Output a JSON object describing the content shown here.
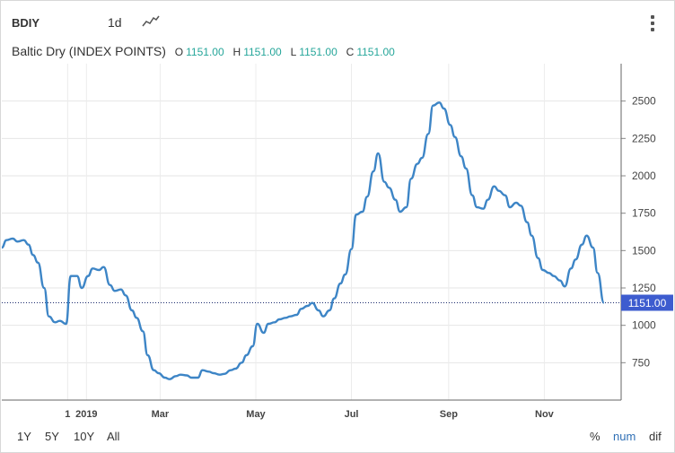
{
  "header": {
    "symbol": "BDIY",
    "interval": "1d",
    "chart_type_icon": "line-chart-icon",
    "menu_icon": "vertical-dots-icon"
  },
  "legend": {
    "name": "Baltic Dry (INDEX POINTS)",
    "open_label": "O",
    "open": "1151.00",
    "high_label": "H",
    "high": "1151.00",
    "low_label": "L",
    "low": "1151.00",
    "close_label": "C",
    "close": "1151.00"
  },
  "range_buttons": [
    "1Y",
    "5Y",
    "10Y",
    "All"
  ],
  "scale_buttons": [
    "%",
    "num",
    "dif"
  ],
  "colors": {
    "line": "#3d85c6",
    "accent": "#26a69a",
    "price_tag": "#3d5ccf",
    "active_scale": "#2f6fb5"
  },
  "chart_data": {
    "type": "line",
    "title": "Baltic Dry (INDEX POINTS)",
    "x_tick_labels": [
      "1",
      "2019",
      "Mar",
      "May",
      "Jul",
      "Sep",
      "Nov"
    ],
    "x_tick_dates": [
      "2019-01-01",
      "2019-01-13",
      "2019-03-01",
      "2019-05-01",
      "2019-07-01",
      "2019-09-01",
      "2019-11-01"
    ],
    "y_ticks": [
      750,
      1000,
      1250,
      1500,
      1750,
      2000,
      2250,
      2500
    ],
    "ylim": [
      500,
      2750
    ],
    "xlim": [
      "2018-11-20",
      "2019-12-20"
    ],
    "last_value": "1151.00",
    "last_value_num": 1151,
    "grid": true,
    "series": [
      {
        "x": [
          "2018-11-20",
          "2018-11-23",
          "2018-11-27",
          "2018-11-30",
          "2018-12-04",
          "2018-12-07",
          "2018-12-10",
          "2018-12-13",
          "2018-12-17",
          "2018-12-20",
          "2018-12-24",
          "2018-12-27",
          "2018-12-31",
          "2019-01-03",
          "2019-01-07",
          "2019-01-10",
          "2019-01-14",
          "2019-01-17",
          "2019-01-21",
          "2019-01-24",
          "2019-01-28",
          "2019-01-31",
          "2019-02-04",
          "2019-02-07",
          "2019-02-11",
          "2019-02-14",
          "2019-02-18",
          "2019-02-21",
          "2019-02-25",
          "2019-02-28",
          "2019-03-04",
          "2019-03-07",
          "2019-03-11",
          "2019-03-14",
          "2019-03-18",
          "2019-03-21",
          "2019-03-25",
          "2019-03-28",
          "2019-04-01",
          "2019-04-04",
          "2019-04-08",
          "2019-04-11",
          "2019-04-15",
          "2019-04-18",
          "2019-04-22",
          "2019-04-25",
          "2019-04-29",
          "2019-05-02",
          "2019-05-06",
          "2019-05-09",
          "2019-05-13",
          "2019-05-16",
          "2019-05-20",
          "2019-05-23",
          "2019-05-27",
          "2019-05-30",
          "2019-06-03",
          "2019-06-06",
          "2019-06-10",
          "2019-06-13",
          "2019-06-17",
          "2019-06-20",
          "2019-06-24",
          "2019-06-27",
          "2019-07-01",
          "2019-07-04",
          "2019-07-08",
          "2019-07-11",
          "2019-07-15",
          "2019-07-18",
          "2019-07-22",
          "2019-07-25",
          "2019-07-29",
          "2019-08-01",
          "2019-08-05",
          "2019-08-08",
          "2019-08-12",
          "2019-08-15",
          "2019-08-19",
          "2019-08-22",
          "2019-08-26",
          "2019-08-29",
          "2019-09-02",
          "2019-09-05",
          "2019-09-09",
          "2019-09-12",
          "2019-09-16",
          "2019-09-19",
          "2019-09-23",
          "2019-09-26",
          "2019-09-30",
          "2019-10-03",
          "2019-10-07",
          "2019-10-10",
          "2019-10-14",
          "2019-10-17",
          "2019-10-21",
          "2019-10-24",
          "2019-10-28",
          "2019-10-31",
          "2019-11-04",
          "2019-11-07",
          "2019-11-11",
          "2019-11-14",
          "2019-11-18",
          "2019-11-21",
          "2019-11-25",
          "2019-11-28",
          "2019-12-02",
          "2019-12-05",
          "2019-12-09"
        ],
        "values": [
          1520,
          1570,
          1580,
          1560,
          1570,
          1540,
          1470,
          1420,
          1250,
          1060,
          1020,
          1030,
          1010,
          1330,
          1330,
          1250,
          1330,
          1380,
          1370,
          1390,
          1270,
          1230,
          1240,
          1200,
          1100,
          1050,
          960,
          800,
          700,
          680,
          650,
          640,
          660,
          670,
          665,
          650,
          650,
          700,
          690,
          680,
          670,
          675,
          700,
          710,
          750,
          800,
          860,
          1010,
          950,
          1010,
          1020,
          1040,
          1050,
          1060,
          1070,
          1110,
          1130,
          1150,
          1100,
          1060,
          1100,
          1180,
          1280,
          1340,
          1510,
          1740,
          1760,
          1860,
          2030,
          2150,
          1960,
          1920,
          1840,
          1760,
          1790,
          1980,
          2080,
          2120,
          2280,
          2470,
          2490,
          2450,
          2340,
          2260,
          2130,
          2050,
          1870,
          1790,
          1780,
          1840,
          1930,
          1900,
          1870,
          1790,
          1820,
          1800,
          1690,
          1600,
          1450,
          1370,
          1350,
          1330,
          1300,
          1260,
          1380,
          1440,
          1540,
          1600,
          1520,
          1350,
          1151
        ]
      }
    ]
  }
}
